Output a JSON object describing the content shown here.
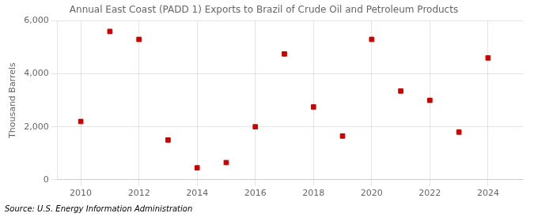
{
  "chart_data": {
    "type": "scatter",
    "title": "Annual East Coast (PADD 1) Exports to Brazil of Crude Oil and Petroleum Products",
    "y_label": "Thousand Barrels",
    "annotations": [
      "Source: U.S. Energy Information Administration"
    ],
    "x": [
      2010,
      2011,
      2012,
      2013,
      2014,
      2015,
      2016,
      2017,
      2018,
      2019,
      2020,
      2021,
      2022,
      2023,
      2024
    ],
    "values": [
      2200,
      5600,
      5300,
      1500,
      450,
      650,
      2000,
      4750,
      2750,
      1650,
      5300,
      3350,
      3000,
      1800,
      4600
    ],
    "color": "#cc0000",
    "marker": "square",
    "xlim": [
      2009.2,
      2025.2
    ],
    "xticks": [
      2010,
      2012,
      2014,
      2016,
      2018,
      2020,
      2022,
      2024
    ],
    "ylim": [
      0,
      6000
    ],
    "yticks": [
      0,
      {
        "value": 2000,
        "label": "2,000"
      },
      {
        "value": 4000,
        "label": "4,000"
      },
      {
        "value": 6000,
        "label": "6,000"
      }
    ],
    "grid": true
  }
}
